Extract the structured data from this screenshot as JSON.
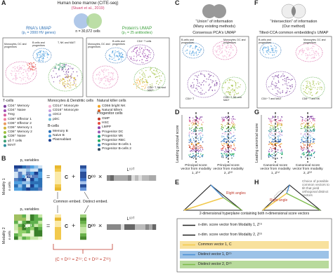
{
  "A": {
    "label": "A",
    "title": "Human bone marrow (CITE-seq)",
    "citation": "(Stuart et al., 2019)",
    "cells": "n = 30,672 cells",
    "rna_title": "RNA's UMAP",
    "rna_sub": "(p₁ = 2000 HV genes)",
    "protein_title": "Protein's UMAP",
    "protein_sub": "(p₂ = 25 antibodies)",
    "rna_clusters": [
      "Monocytes, DC and progenitors",
      "B cells and progenitors",
      "T, NK and MAIT"
    ],
    "protein_clusters": [
      "Monocytes, DC and progenitors",
      "B cells and progenitors",
      "CD4⁺ T cells",
      "CD8⁺ T, NK and MAIT"
    ]
  },
  "legend": {
    "groups": [
      {
        "title": "T-cells",
        "items": [
          {
            "name": "CD4⁺ Memory",
            "color": "#7b3f9e"
          },
          {
            "name": "CD4⁺ Naive",
            "color": "#a14fb2"
          },
          {
            "name": "Treg",
            "color": "#d45fa0"
          },
          {
            "name": "CD8⁺ Effector 1",
            "color": "#f07f9f"
          },
          {
            "name": "CD8⁺ Effector 2",
            "color": "#e99a5c"
          },
          {
            "name": "CD8⁺ Memory 1",
            "color": "#d4b33a"
          },
          {
            "name": "CD8⁺ Memory 2",
            "color": "#9fbf3b"
          },
          {
            "name": "CD8⁺ Naive",
            "color": "#5fb04d"
          },
          {
            "name": "γδ T cells",
            "color": "#3a9f74"
          },
          {
            "name": "MAIT",
            "color": "#2f8f9f"
          }
        ]
      },
      {
        "title": "Monocytes & Dendritic cells",
        "items": [
          {
            "name": "CD14⁺ Monocyte",
            "color": "#f2b2d4"
          },
          {
            "name": "CD16⁺ Monocyte",
            "color": "#c9a0e0"
          },
          {
            "name": "cDC2",
            "color": "#8fa8e0"
          },
          {
            "name": "pDC",
            "color": "#6fc0d8"
          }
        ]
      },
      {
        "title": "B-cells",
        "items": [
          {
            "name": "Memory B",
            "color": "#2b6fb5"
          },
          {
            "name": "Naive B",
            "color": "#4fa0e0"
          },
          {
            "name": "Plasmablast",
            "color": "#1b3f8f"
          }
        ]
      },
      {
        "title": "Natural killer cells",
        "items": [
          {
            "name": "CD56 bright NK",
            "color": "#f5a623"
          },
          {
            "name": "Natural killers",
            "color": "#e06020"
          }
        ]
      },
      {
        "title": "Progenitor cells",
        "items": [
          {
            "name": "GMP",
            "color": "#c0392b"
          },
          {
            "name": "HSC",
            "color": "#e74c3c"
          },
          {
            "name": "LMPP",
            "color": "#8e44ad"
          },
          {
            "name": "Progenitor DC",
            "color": "#9b59b6"
          },
          {
            "name": "Progenitor Mk",
            "color": "#16a085"
          },
          {
            "name": "Progenitor RBC",
            "color": "#27ae60"
          },
          {
            "name": "Progenitor B-cells 1",
            "color": "#2980b9"
          },
          {
            "name": "Progenitor B-cells 2",
            "color": "#34495e"
          }
        ]
      }
    ]
  },
  "B": {
    "label": "B",
    "p1": "p₁ variables",
    "p2": "p₂ variables",
    "modality1": "Modality 1",
    "modality2": "Modality 2",
    "ncells1": "n cells",
    "ncells2": "n cells",
    "X1": "X⁽¹⁾",
    "X2": "X⁽²⁾",
    "C1": "C",
    "C2": "C",
    "D1": "D⁽¹⁾",
    "D2": "D⁽²⁾",
    "L1": "L⁽¹⁾ᵀ",
    "L2": "L⁽²⁾ᵀ",
    "equals": "=",
    "plus": "+",
    "times": "×",
    "common": "Common embed.",
    "distinct": "Distinct embed.",
    "equation": "(C + D⁽¹⁾ = Z⁽¹⁾; C + D⁽²⁾ = Z⁽²⁾)"
  },
  "C": {
    "label": "C",
    "title": "“Union” of information",
    "sub": "(Many existing methods)",
    "umap": "Consensus PCA's UMAP",
    "clusters": [
      "B-cells and progenitors",
      "Monocytes, DC and progenitors",
      "CD8⁺ T, NK and MAIT",
      "CD4⁺ T"
    ]
  },
  "D": {
    "label": "D",
    "axis": "Leading principal score",
    "vec1": "Principal score vector from modality 1, Z⁽¹⁾",
    "vec2": "Principal score vector from modality 2, Z⁽²⁾"
  },
  "E": {
    "label": "E",
    "note": "Right angles"
  },
  "F": {
    "label": "F",
    "title": "“Intersection” of information",
    "sub": "(Our method)",
    "umap": "Tilted-CCA common embedding's UMAP",
    "clusters": [
      "B-cells and progenitors",
      "Monocytes, DC and progenitors",
      "CD4⁺ T and MAIT",
      "CD8⁺ T and NK"
    ]
  },
  "G": {
    "label": "G",
    "axis": "Leading canonical score",
    "vec1": "Canonical score vector from modality 1, Z⁽¹⁾",
    "vec2": "Canonical score vector from modality 2, Z⁽²⁾"
  },
  "H": {
    "label": "H",
    "note": "Right angle",
    "choice": "Choice of possible common vectors to tilt that yield orthogonal distinct vectors"
  },
  "key": {
    "title": "2-dimensional hyperplane containing both n-dimensional score vectors",
    "items": [
      {
        "name": "n-dim. score vector from Modality 1, Z⁽¹⁾",
        "color": "#222222"
      },
      {
        "name": "n-dim. score vector from Modality 2, Z⁽²⁾",
        "color": "#222222"
      },
      {
        "name": "Common vector 1, C",
        "color": "#f2c94c"
      },
      {
        "name": "Distinct vector 1, D⁽¹⁾",
        "color": "#4a8fd4"
      },
      {
        "name": "Distinct vector 2, D⁽²⁾",
        "color": "#7dbb4a"
      }
    ]
  }
}
